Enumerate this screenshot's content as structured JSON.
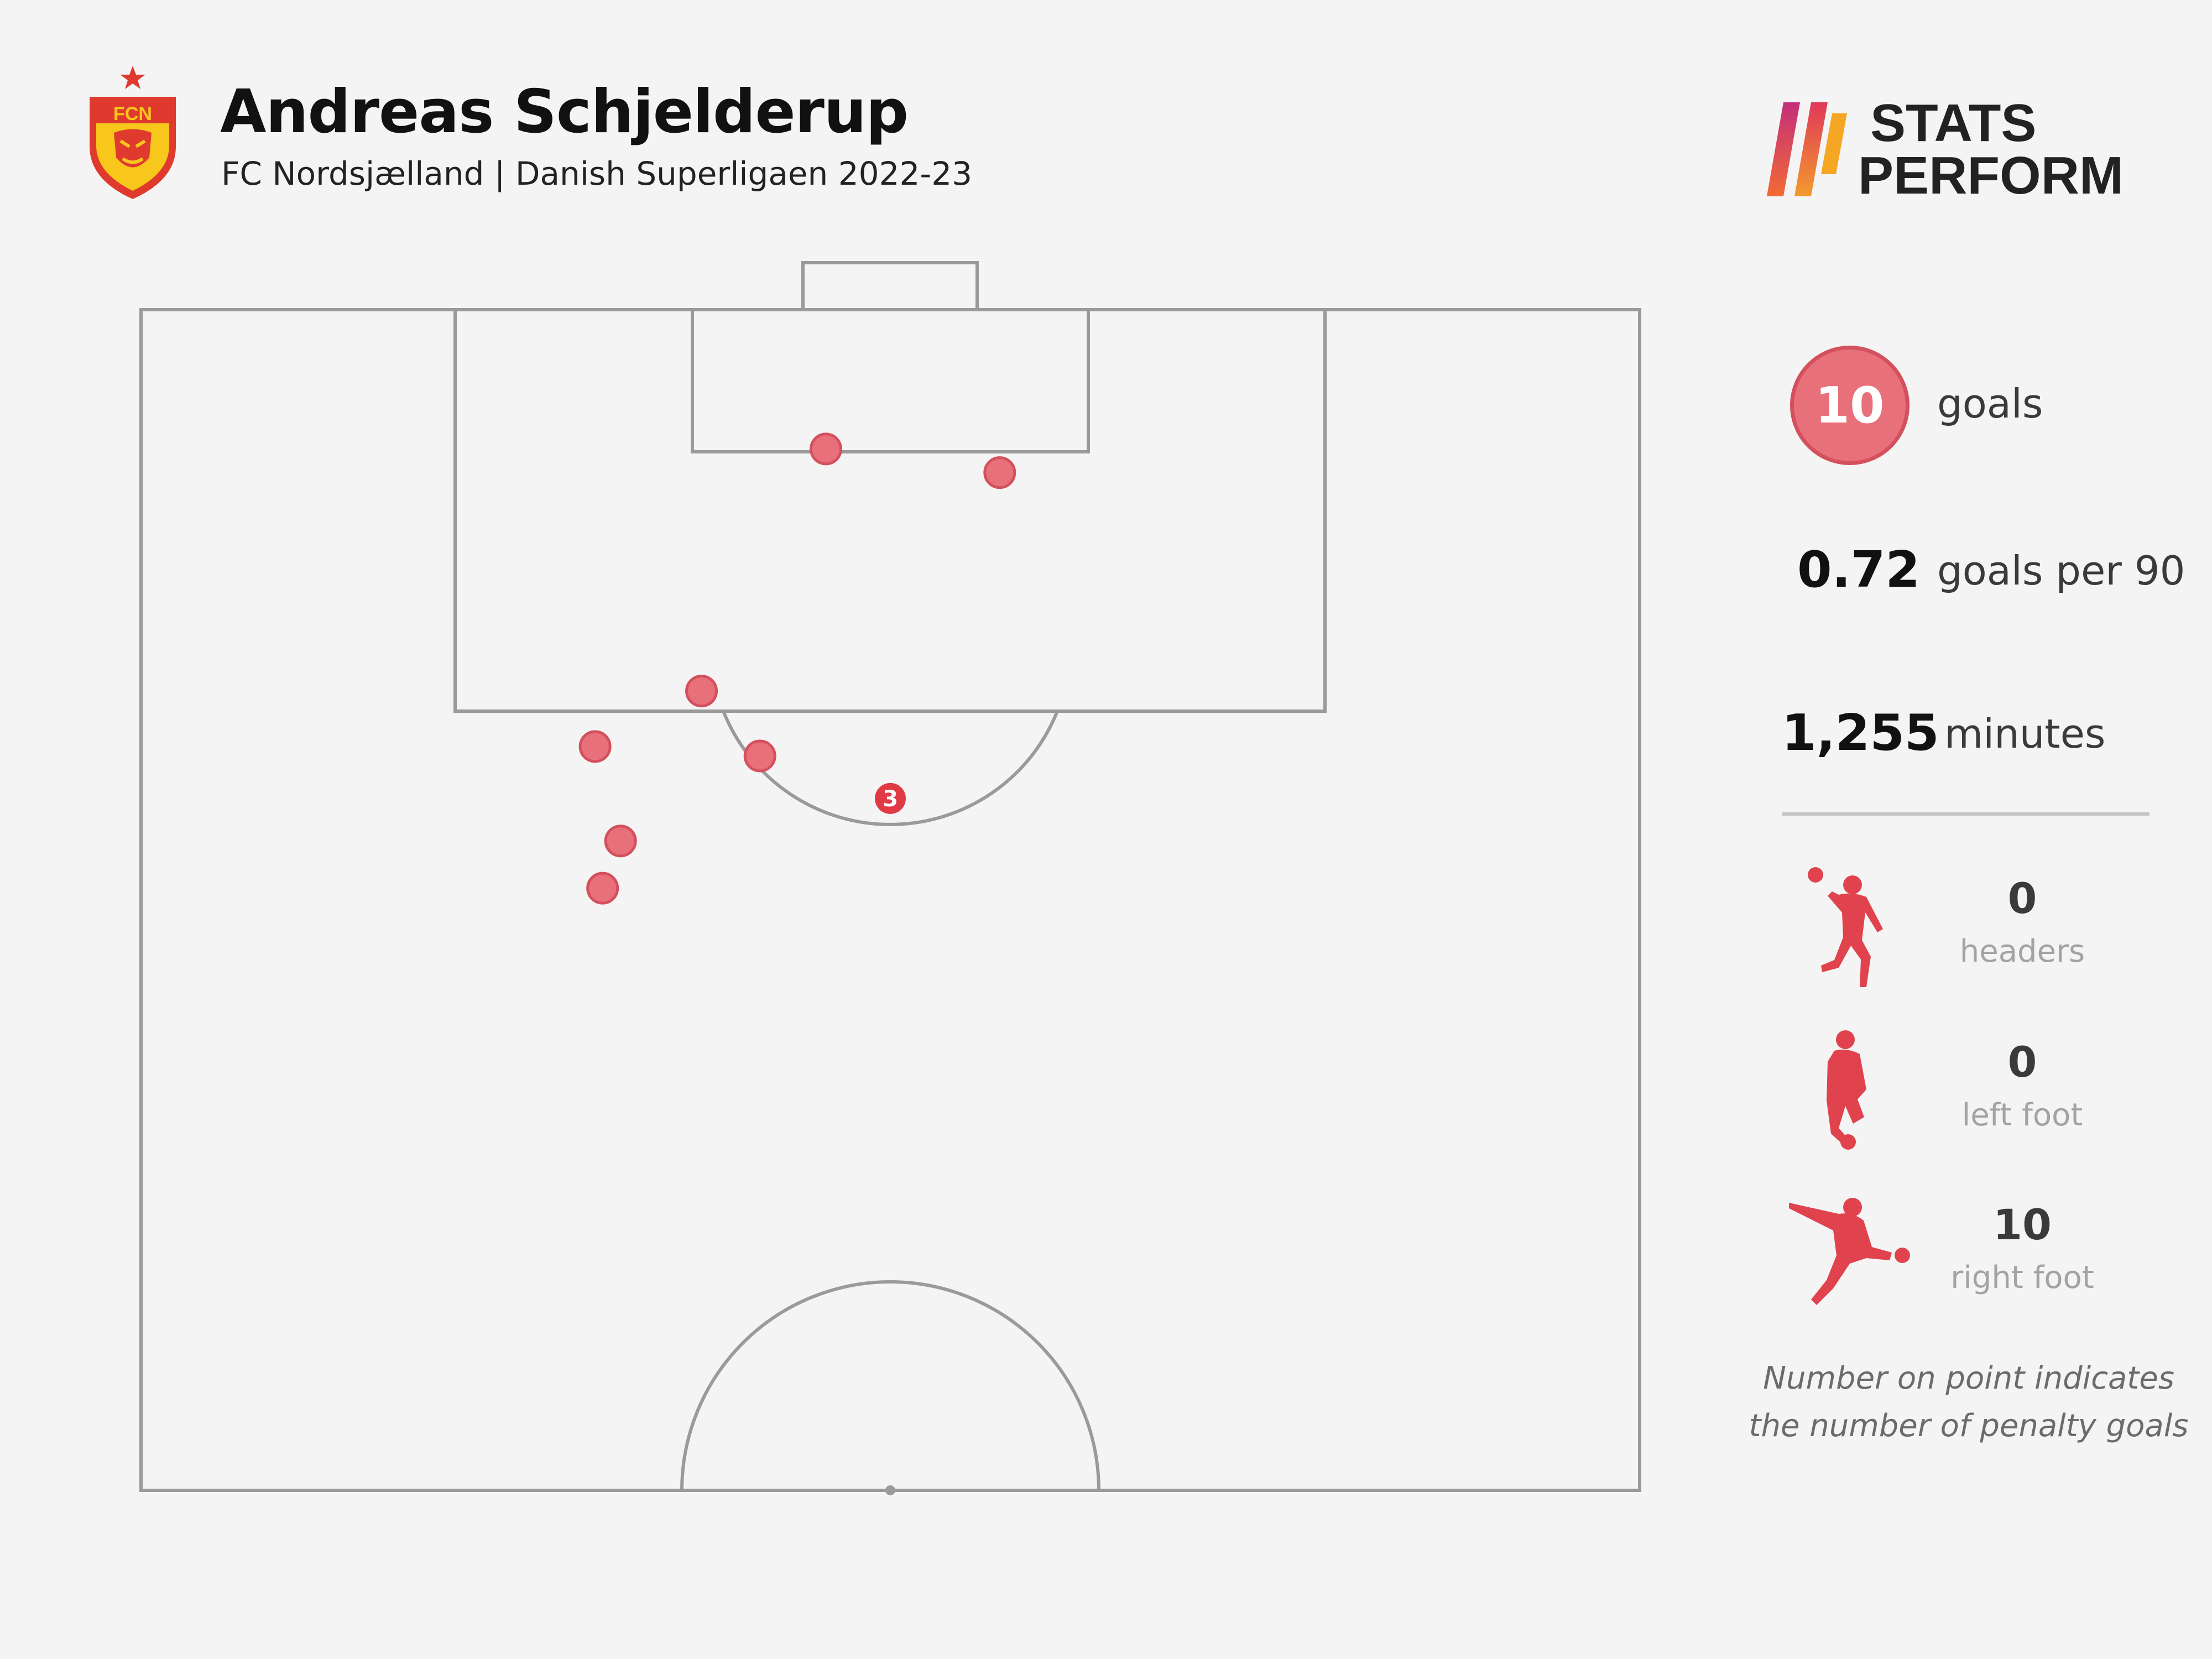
{
  "header": {
    "crest_text": "FCN",
    "player_name": "Andreas Schjelderup",
    "subtitle": "FC Nordsjælland | Danish Superligaen 2022-23"
  },
  "brand": {
    "line1": "STATS",
    "line2": "PERFORM"
  },
  "colors": {
    "goal_point": "#e8707a",
    "goal_point_stroke": "#d3505c",
    "penalty_point": "#e03a44",
    "silhouette": "#e0434d",
    "pitch_line": "#9a9a9a",
    "crest_red": "#e03a2f",
    "crest_yellow": "#f7c71b"
  },
  "stats": {
    "goals_value": "10",
    "goals_label": "goals",
    "gp90_value": "0.72",
    "gp90_label": "goals per 90",
    "minutes_value": "1,255",
    "minutes_label": "minutes"
  },
  "goal_types": [
    {
      "count": "0",
      "label": "headers",
      "icon": "header-player-icon"
    },
    {
      "count": "0",
      "label": "left foot",
      "icon": "left-foot-player-icon"
    },
    {
      "count": "10",
      "label": "right foot",
      "icon": "right-foot-player-icon"
    }
  ],
  "note": {
    "line1": "Number on point indicates",
    "line2": "the number of penalty goals"
  },
  "chart_data": {
    "type": "scatter",
    "pitch": "half-pitch",
    "points": [
      {
        "x": 0.457,
        "y": 0.118,
        "penalties": 0
      },
      {
        "x": 0.573,
        "y": 0.138,
        "penalties": 0
      },
      {
        "x": 0.374,
        "y": 0.323,
        "penalties": 0
      },
      {
        "x": 0.413,
        "y": 0.378,
        "penalties": 0
      },
      {
        "x": 0.303,
        "y": 0.37,
        "penalties": 0
      },
      {
        "x": 0.32,
        "y": 0.45,
        "penalties": 0
      },
      {
        "x": 0.308,
        "y": 0.49,
        "penalties": 0
      },
      {
        "x": 0.5,
        "y": 0.414,
        "penalties": 3,
        "label": "3"
      }
    ]
  }
}
